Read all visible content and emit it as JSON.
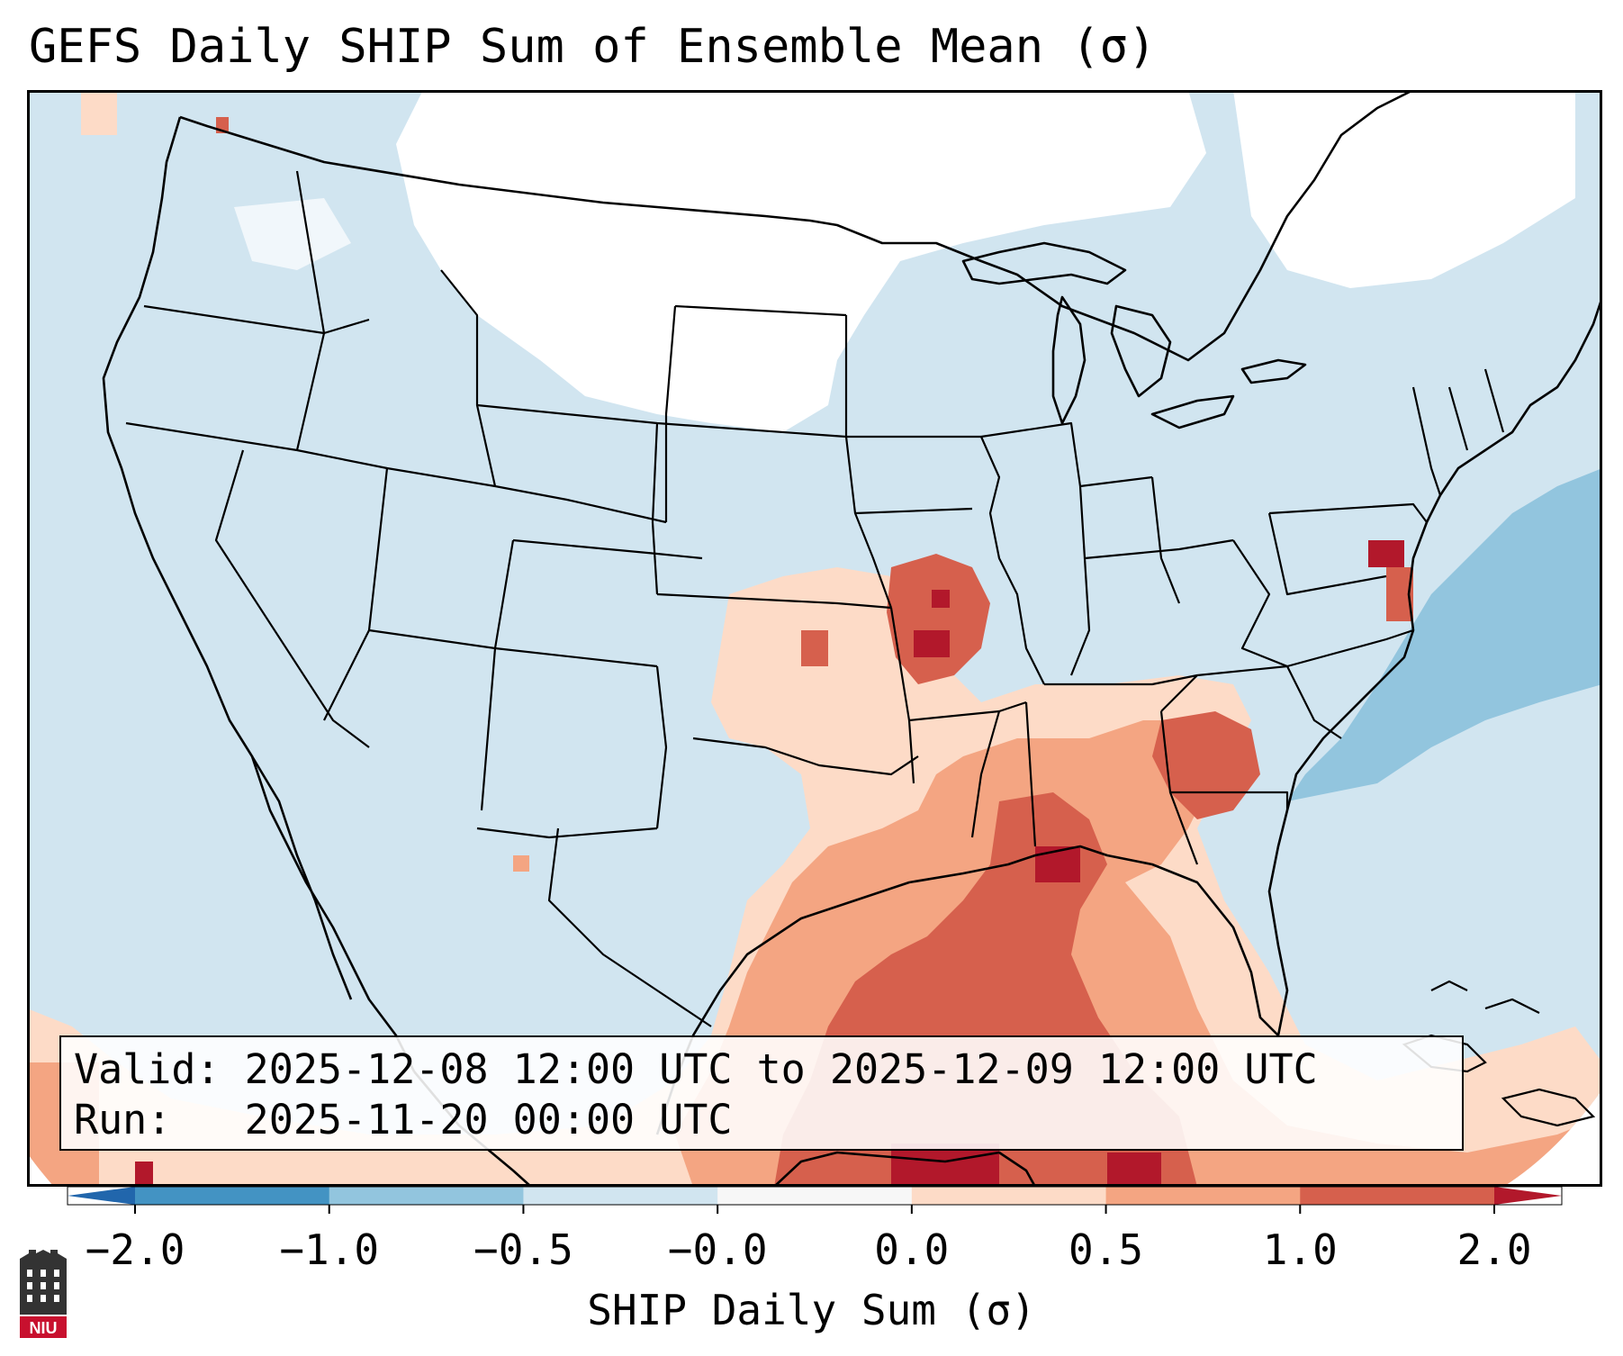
{
  "title": "GEFS Daily SHIP Sum of Ensemble Mean (σ)",
  "info": {
    "valid": "Valid: 2025-12-08 12:00 UTC to 2025-12-09 12:00 UTC",
    "run": "Run:   2025-11-20 00:00 UTC"
  },
  "colorbar": {
    "label": "SHIP Daily Sum (σ)",
    "ticks": [
      "−2.0",
      "−1.0",
      "−0.5",
      "−0.0",
      "0.0",
      "0.5",
      "1.0",
      "2.0"
    ],
    "bins": [
      {
        "color": "#4393c3"
      },
      {
        "color": "#92c5de"
      },
      {
        "color": "#d1e5f0"
      },
      {
        "color": "#f7f7f7"
      },
      {
        "color": "#fddbc7"
      },
      {
        "color": "#f4a582"
      },
      {
        "color": "#d6604d"
      }
    ],
    "extend_low": "#2166ac",
    "extend_high": "#b2182b"
  },
  "map": {
    "background_color": "#d1e5f0",
    "projection": "Lambert conformal over CONUS",
    "regions": [
      {
        "name": "northern-plains-canada-neutral",
        "color": "#ffffff"
      },
      {
        "name": "atlantic-offshore-low",
        "color": "#92c5de"
      },
      {
        "name": "gulf-coast-high",
        "color": "#d6604d"
      },
      {
        "name": "missouri-high",
        "color": "#d6604d"
      },
      {
        "name": "southeast-moderate",
        "color": "#f4a582"
      },
      {
        "name": "southern-plains-slight",
        "color": "#fddbc7"
      }
    ]
  },
  "logo": {
    "text": "NIU",
    "color": "#c8102e"
  }
}
